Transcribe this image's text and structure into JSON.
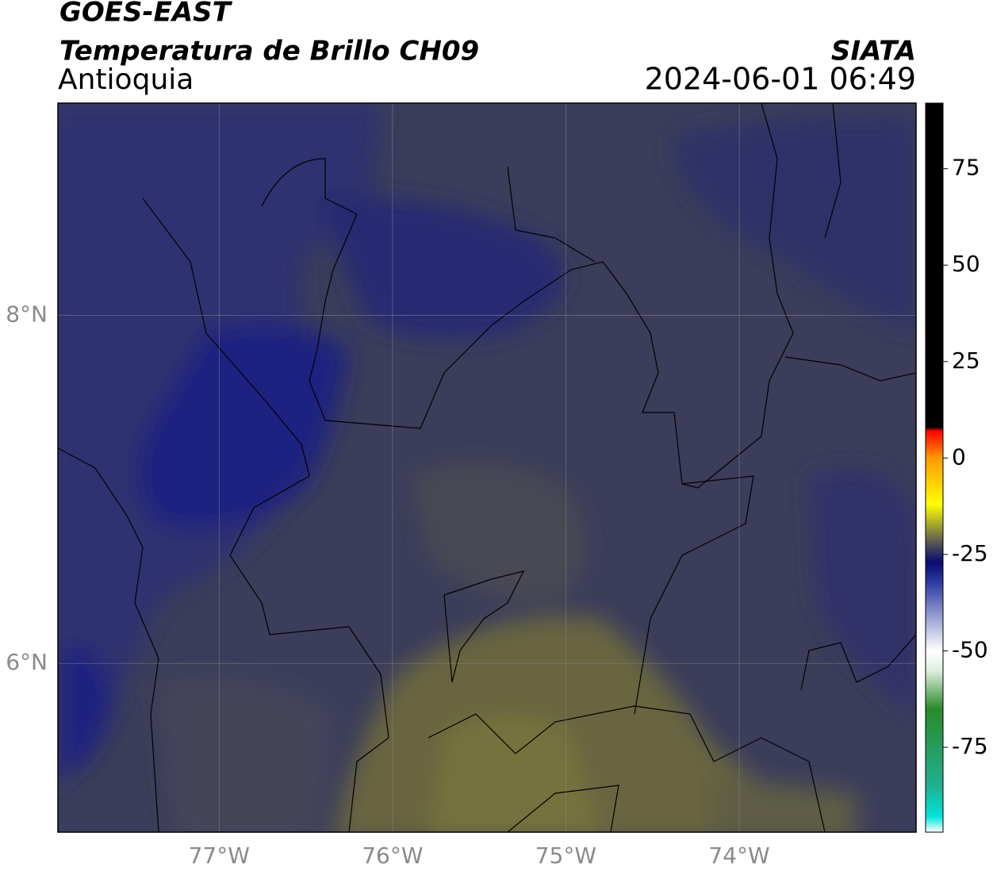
{
  "header": {
    "title": "GOES-EAST",
    "subtitle": "Temperatura de Brillo CH09",
    "region": "Antioquia",
    "source": "SIATA",
    "datetime": "2024-06-01 06:49"
  },
  "map": {
    "xlim": [
      -77.93,
      -72.98
    ],
    "ylim": [
      5.03,
      9.22
    ],
    "xticks": [
      {
        "value": -77,
        "label": "77°W"
      },
      {
        "value": -76,
        "label": "76°W"
      },
      {
        "value": -75,
        "label": "75°W"
      },
      {
        "value": -74,
        "label": "74°W"
      }
    ],
    "yticks": [
      {
        "value": 8,
        "label": "8°N"
      },
      {
        "value": 6,
        "label": "6°N"
      }
    ],
    "grid": true
  },
  "colorbar": {
    "lim": [
      -97,
      92
    ],
    "ticks": [
      75,
      50,
      25,
      0,
      -25,
      -50,
      -75
    ],
    "stops": [
      {
        "value": -97,
        "color": "#ffffff"
      },
      {
        "value": -93,
        "color": "#00e5dc"
      },
      {
        "value": -85,
        "color": "#20b090"
      },
      {
        "value": -65,
        "color": "#2a8a2a"
      },
      {
        "value": -55,
        "color": "#e0f0e0"
      },
      {
        "value": -50,
        "color": "#ffffff"
      },
      {
        "value": -42,
        "color": "#a0a8d8"
      },
      {
        "value": -32,
        "color": "#2a38a0"
      },
      {
        "value": -27,
        "color": "#0a0a70"
      },
      {
        "value": -22,
        "color": "#555555"
      },
      {
        "value": -12,
        "color": "#ffff00"
      },
      {
        "value": 0,
        "color": "#ff9900"
      },
      {
        "value": 7,
        "color": "#ff0000"
      },
      {
        "value": 8,
        "color": "#000000"
      },
      {
        "value": 92,
        "color": "#000000"
      }
    ]
  }
}
